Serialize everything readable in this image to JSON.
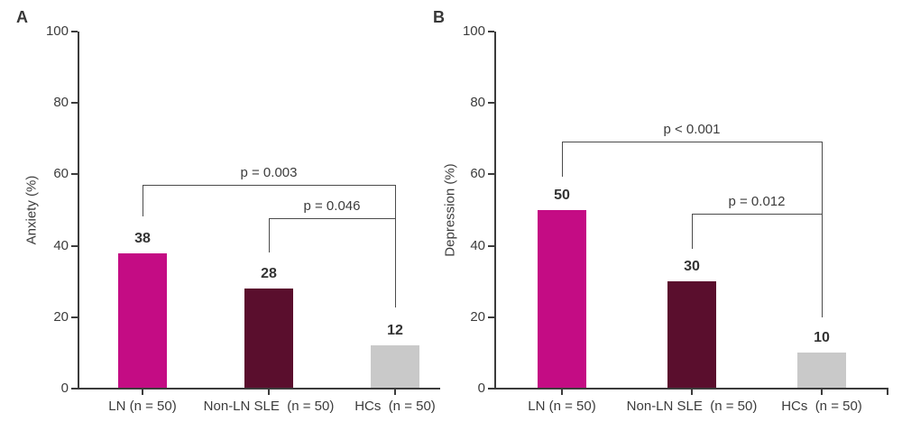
{
  "figure": {
    "background_color": "#ffffff",
    "text_color": "#3c3c3c",
    "bracket_line_color": "#4b4b4b",
    "axis_color": "#3c3c3c"
  },
  "chart_data": [
    {
      "type": "bar",
      "panel_letter": "A",
      "title": "",
      "xlabel": "",
      "ylabel": "Anxiety (%)",
      "ylim": [
        0,
        100
      ],
      "yticks": [
        0,
        20,
        40,
        60,
        80,
        100
      ],
      "grid": false,
      "legend": false,
      "groups": [
        "LN",
        "Non-LN SLE",
        "HCs"
      ],
      "categories": [
        "LN (n = 50)",
        "Non-LN SLE  (n = 50)",
        "HCs  (n = 50)"
      ],
      "values": [
        38,
        28,
        12
      ],
      "value_labels": [
        "38",
        "28",
        "12"
      ],
      "bar_colors": [
        "#c40c84",
        "#5a0e2d",
        "#c9c9c9"
      ],
      "significance": [
        {
          "label": "p = 0.003",
          "from": "LN",
          "to": "HCs"
        },
        {
          "label": "p = 0.046",
          "from": "Non-LN SLE",
          "to": "HCs"
        }
      ]
    },
    {
      "type": "bar",
      "panel_letter": "B",
      "title": "",
      "xlabel": "",
      "ylabel": "Depression (%)",
      "ylim": [
        0,
        100
      ],
      "yticks": [
        0,
        20,
        40,
        60,
        80,
        100
      ],
      "grid": false,
      "legend": false,
      "groups": [
        "LN",
        "Non-LN SLE",
        "HCs"
      ],
      "categories": [
        "LN (n = 50)",
        "Non-LN SLE  (n = 50)",
        "HCs  (n = 50)"
      ],
      "values": [
        50,
        30,
        10
      ],
      "value_labels": [
        "50",
        "30",
        "10"
      ],
      "bar_colors": [
        "#c40c84",
        "#5a0e2d",
        "#c9c9c9"
      ],
      "significance": [
        {
          "label": "p < 0.001",
          "from": "LN",
          "to": "HCs"
        },
        {
          "label": "p = 0.012",
          "from": "Non-LN SLE",
          "to": "HCs"
        }
      ]
    }
  ]
}
